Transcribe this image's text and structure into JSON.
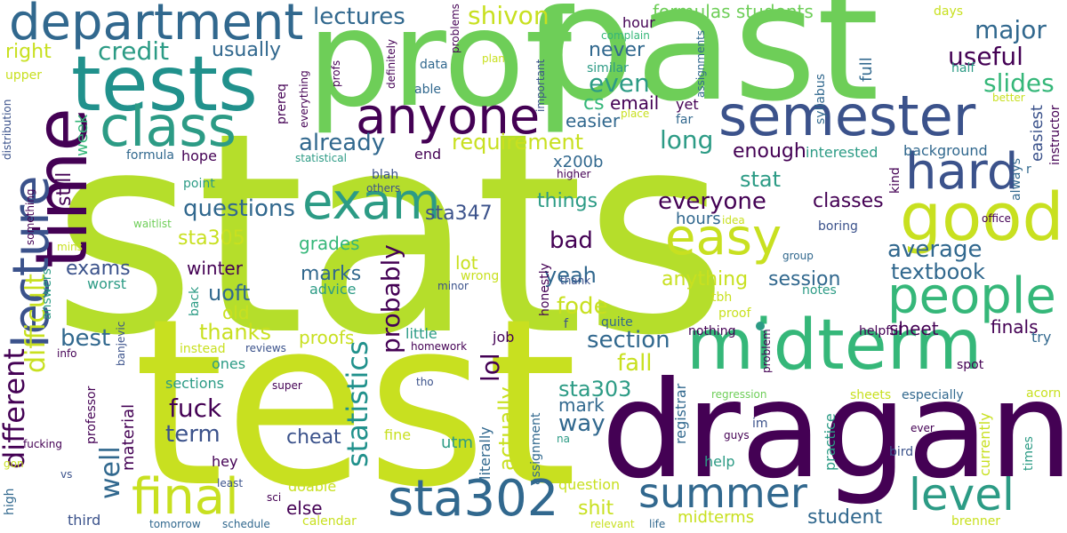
{
  "palette": {
    "dark-purple": "#440154",
    "indigo": "#3b528b",
    "blue": "#31688e",
    "teal": "#21918c",
    "sea-green": "#2c9b85",
    "green": "#35b779",
    "light-green": "#6ece58",
    "lime": "#b5de2b",
    "yellow-green": "#c8e020"
  },
  "words": {
    "stats": "stats",
    "test": "test",
    "prof": "prof",
    "past": "past",
    "dragan": "dragan",
    "midterm": "midterm",
    "tests": "tests",
    "department": "department",
    "time": "time",
    "lecture": "lecture",
    "semester": "semester",
    "anyone": "anyone",
    "class": "class",
    "good": "good",
    "exam": "exam",
    "easy": "easy",
    "hard": "hard",
    "people": "people",
    "sta302": "sta302",
    "final": "final",
    "summer": "summer",
    "level": "level",
    "different": "different",
    "difficult": "difficult",
    "statistics": "statistics",
    "shivon": "shivon",
    "lectures": "lectures",
    "major": "major",
    "useful": "useful",
    "slides": "slides",
    "credit": "credit",
    "usually": "usually",
    "right": "right",
    "never": "never",
    "even": "even",
    "cs": "cs",
    "email": "email",
    "easier": "easier",
    "already": "already",
    "requirement": "requirement",
    "long": "long",
    "enough": "enough",
    "stat": "stat",
    "everyone": "everyone",
    "questions": "questions",
    "sta347": "sta347",
    "things": "things",
    "sta305": "sta305",
    "grades": "grades",
    "bad": "bad",
    "average": "average",
    "textbook": "textbook",
    "session": "session",
    "anything": "anything",
    "exams": "exams",
    "winter": "winter",
    "marks": "marks",
    "uoft": "uoft",
    "old": "old",
    "yeah": "yeah",
    "fode": "fode",
    "thanks": "thanks",
    "best": "best",
    "proofs": "proofs",
    "section": "section",
    "sheet": "sheet",
    "finals": "finals",
    "fall": "fall",
    "sta303": "sta303",
    "fuck": "fuck",
    "mark": "mark",
    "way": "way",
    "term": "term",
    "cheat": "cheat",
    "well": "well",
    "material": "material",
    "lot": "lot",
    "wrong": "wrong",
    "professor": "professor",
    "sections": "sections",
    "ones": "ones",
    "utm": "utm",
    "actually": "actually",
    "lol": "lol",
    "probably": "probably",
    "formulas students": "formulas students",
    "hour": "hour",
    "complain": "complain",
    "days": "days",
    "full": "full",
    "half": "half",
    "similar": "similar",
    "yet": "yet",
    "far": "far",
    "instructor": "instructor",
    "easiest": "easiest",
    "better": "better",
    "background": "background",
    "interested": "interested",
    "kind": "kind",
    "always": "always",
    "r": "r",
    "office": "office",
    "classes": "classes",
    "hours": "hours",
    "idea": "idea",
    "boring": "boring",
    "group": "group",
    "notes": "notes",
    "tbh": "tbh",
    "proof": "proof",
    "nothing": "nothing",
    "problem": "problem",
    "helpful": "helpful",
    "try": "try",
    "spot": "spot",
    "regression": "regression",
    "sheets": "sheets",
    "especially": "especially",
    "acorn": "acorn",
    "im": "im",
    "guys": "guys",
    "ever": "ever",
    "bird": "bird",
    "currently": "currently",
    "times": "times",
    "registrar": "registrar",
    "help": "help",
    "practice": "practice",
    "midterms": "midterms",
    "student": "student",
    "life": "life",
    "brenner": "brenner",
    "relevant": "relevant",
    "question": "question",
    "assignment": "assignment",
    "na": "na",
    "fine": "fine",
    "tho": "tho",
    "literally": "literally",
    "else": "else",
    "doable": "doable",
    "calendar": "calendar",
    "shit": "shit",
    "sci": "sci",
    "job": "job",
    "little": "little",
    "homework": "homework",
    "quite": "quite",
    "f": "f",
    "honestly": "honestly",
    "minor": "minor",
    "thank": "thank",
    "advice": "advice",
    "reviews": "reviews",
    "instead": "instead",
    "super": "super",
    "hey": "hey",
    "least": "least",
    "schedule": "schedule",
    "tomorrow": "tomorrow",
    "third": "third",
    "high": "high",
    "gon": "gon",
    "vs": "vs",
    "fucking": "fucking",
    "banjevic": "banjevic",
    "back": "back",
    "worst": "worst",
    "answers": "answers",
    "info": "info",
    "mins": "mins",
    "something": "something",
    "distribution": "distribution",
    "waitlist": "waitlist",
    "others": "others",
    "higher": "higher",
    "point": "point",
    "blah": "blah",
    "statistical": "statistical",
    "formula": "formula",
    "hope": "hope",
    "end": "end",
    "x200b": "x200b",
    "week": "week",
    "still": "still",
    "prereq": "prereq",
    "everything": "everything",
    "profs": "profs",
    "definitely": "definitely",
    "problems": "problems",
    "data": "data",
    "able": "able",
    "plan": "plan",
    "important": "important",
    "place": "place",
    "assignments": "assignments",
    "syllabus": "syllabus",
    "upper": "upper"
  }
}
